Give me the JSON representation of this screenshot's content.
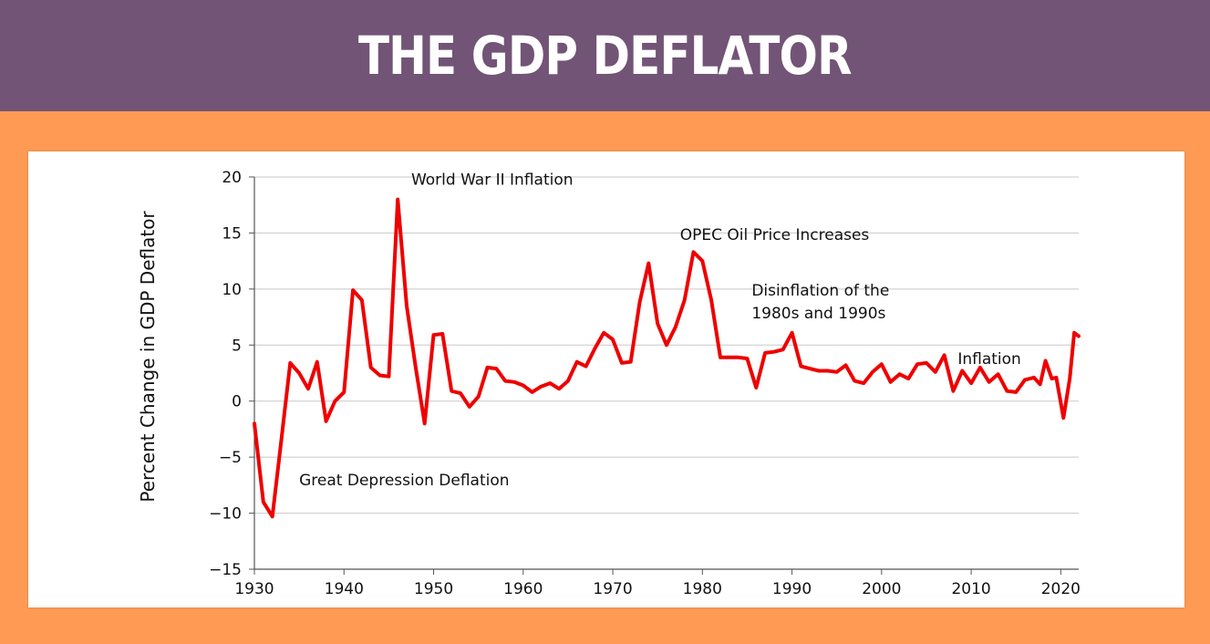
{
  "header": {
    "title": "THE GDP DEFLATOR"
  },
  "chart_data": {
    "type": "line",
    "title": "THE GDP DEFLATOR",
    "xlabel": "",
    "ylabel": "Percent Change in GDP Deflator",
    "xlim": [
      1930,
      2022
    ],
    "ylim": [
      -15,
      20
    ],
    "xticks": [
      1930,
      1940,
      1950,
      1960,
      1970,
      1980,
      1990,
      2000,
      2010,
      2020
    ],
    "yticks": [
      20,
      15,
      10,
      5,
      0,
      -5,
      -10,
      -15
    ],
    "ytick_labels": [
      "20",
      "15",
      "10",
      "5",
      "0",
      "−5",
      "−10",
      "−15"
    ],
    "grid": true,
    "line_color": "#ee0000",
    "series": [
      {
        "x": [
          1930,
          1931,
          1932,
          1933,
          1934,
          1935,
          1936,
          1937,
          1938,
          1939,
          1940,
          1941,
          1942,
          1943,
          1944,
          1945,
          1946,
          1947,
          1948,
          1949,
          1950,
          1951,
          1952,
          1953,
          1954,
          1955,
          1956,
          1957,
          1958,
          1959,
          1960,
          1961,
          1962,
          1963,
          1964,
          1965,
          1966,
          1967,
          1968,
          1969,
          1970,
          1971,
          1972,
          1973,
          1974,
          1975,
          1976,
          1977,
          1978,
          1979,
          1980,
          1981,
          1982,
          1983,
          1984,
          1985,
          1986,
          1987,
          1988,
          1989,
          1990,
          1991,
          1992,
          1993,
          1994,
          1995,
          1996,
          1997,
          1998,
          1999,
          2000,
          2001,
          2002,
          2003,
          2004,
          2005,
          2006,
          2007,
          2008,
          2009,
          2010,
          2011,
          2012,
          2013,
          2014,
          2015,
          2016,
          2017,
          2017.7,
          2018.3,
          2019,
          2019.5,
          2020.3,
          2021,
          2021.5,
          2022
        ],
        "values": [
          -2,
          -9,
          -10.3,
          -3.5,
          3.4,
          2.5,
          1.1,
          3.5,
          -1.8,
          0,
          0.8,
          9.9,
          9,
          3,
          2.3,
          2.2,
          18,
          8.5,
          3,
          -2,
          5.9,
          6,
          0.9,
          0.7,
          -0.5,
          0.4,
          3,
          2.9,
          1.8,
          1.7,
          1.4,
          0.8,
          1.3,
          1.6,
          1.1,
          1.8,
          3.5,
          3.1,
          4.7,
          6.1,
          5.5,
          3.4,
          3.5,
          8.8,
          12.3,
          6.9,
          5,
          6.6,
          9,
          13.3,
          12.5,
          9,
          3.9,
          3.9,
          3.9,
          3.8,
          1.2,
          4.3,
          4.4,
          4.6,
          6.1,
          3.1,
          2.9,
          2.7,
          2.7,
          2.6,
          3.2,
          1.8,
          1.6,
          2.6,
          3.3,
          1.7,
          2.4,
          2,
          3.3,
          3.4,
          2.6,
          4.1,
          0.9,
          2.7,
          1.6,
          3,
          1.7,
          2.4,
          0.9,
          0.8,
          1.9,
          2.1,
          1.5,
          3.6,
          2,
          2.1,
          -1.5,
          2,
          6.1,
          5.8
        ]
      }
    ],
    "annotations": [
      {
        "text": "World War II Inflation",
        "x": 1947.5,
        "y": 19.3
      },
      {
        "text": "OPEC Oil Price Increases",
        "x": 1977.5,
        "y": 14.4
      },
      {
        "text": "Disinflation of the",
        "x": 1985.5,
        "y": 9.4
      },
      {
        "text": "1980s and 1990s",
        "x": 1985.5,
        "y": 7.4
      },
      {
        "text": "Inflation",
        "x": 2008.5,
        "y": 3.3
      },
      {
        "text": "Great Depression Deflation",
        "x": 1935,
        "y": -7.5
      }
    ]
  }
}
